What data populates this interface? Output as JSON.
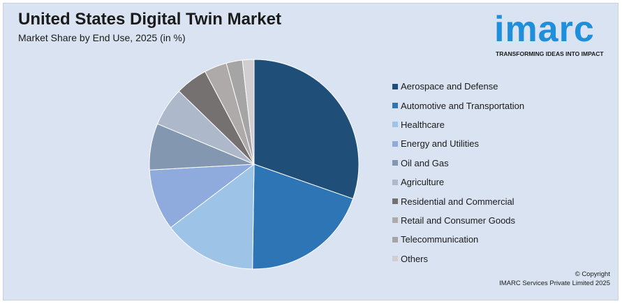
{
  "header": {
    "title": "United States Digital Twin Market",
    "subtitle": "Market Share by End Use, 2025 (in %)"
  },
  "logo": {
    "word": "imarc",
    "tagline": "TRANSFORMING IDEAS INTO IMPACT",
    "color": "#1f8fdc"
  },
  "footer": {
    "copyright": "© Copyright",
    "company": "IMARC Services Private Limited 2025"
  },
  "chart_data": {
    "type": "pie",
    "title": "United States Digital Twin Market",
    "subtitle": "Market Share by End Use, 2025 (in %)",
    "legend_position": "right",
    "start_angle": "12 o'clock, clockwise",
    "categories": [
      "Aerospace and Defense",
      "Automotive and Transportation",
      "Healthcare",
      "Energy and Utilities",
      "Oil and Gas",
      "Agriculture",
      "Residential and Commercial",
      "Retail and Consumer Goods",
      "Telecommunication",
      "Others"
    ],
    "values": [
      30.5,
      20,
      14.5,
      9.5,
      7.2,
      6,
      5,
      3.5,
      2.5,
      1.8
    ],
    "colors": [
      "#1f4e79",
      "#2e75b6",
      "#9dc3e6",
      "#8faadc",
      "#8497b0",
      "#adb9ca",
      "#767171",
      "#aeaaaa",
      "#a5a5a5",
      "#d0cece"
    ]
  }
}
